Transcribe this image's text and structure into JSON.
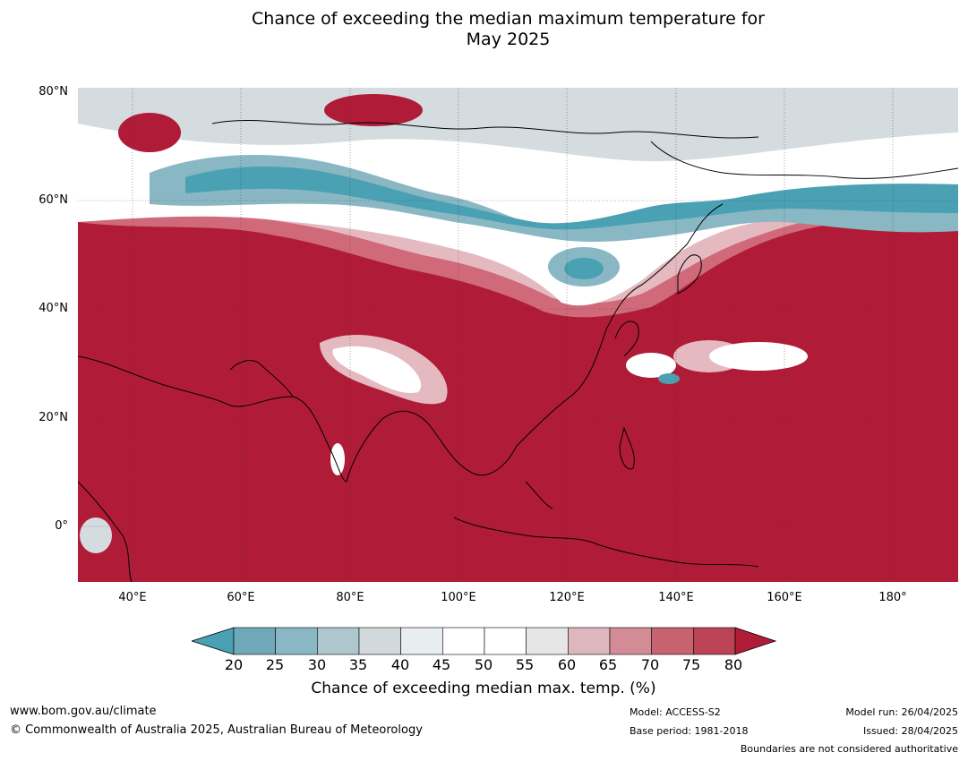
{
  "title": {
    "line1": "Chance of exceeding the median maximum temperature for",
    "line2": "May 2025"
  },
  "map": {
    "lat_labels": [
      "80°N",
      "60°N",
      "40°N",
      "20°N",
      "0°"
    ],
    "lon_labels": [
      "40°E",
      "60°E",
      "80°E",
      "100°E",
      "120°E",
      "140°E",
      "160°E",
      "180°"
    ],
    "colors": {
      "ocean_hot": "#b01c38",
      "warm": "#d06a7a",
      "light_warm": "#e5b9c0",
      "neutral": "#ffffff",
      "light_cool": "#d4dcdf",
      "cool": "#8ab7c4",
      "cold": "#4aa1b3"
    }
  },
  "colorbar": {
    "tick_labels": [
      "20",
      "25",
      "30",
      "35",
      "40",
      "45",
      "50",
      "55",
      "60",
      "65",
      "70",
      "75",
      "80"
    ],
    "bin_colors": [
      "#6fa8b8",
      "#8ab7c4",
      "#aec6ce",
      "#d1d9dc",
      "#e8eef0",
      "#ffffff",
      "#ffffff",
      "#e6e6e6",
      "#ddb7bd",
      "#d38b95",
      "#c6636f",
      "#bb4355"
    ],
    "low_color": "#4aa1b3",
    "high_color": "#b01c38",
    "label": "Chance of exceeding median max. temp. (%)"
  },
  "footer": {
    "website": "www.bom.gov.au/climate",
    "copyright": "© Commonwealth of Australia 2025, Australian Bureau of Meteorology",
    "model": "Model: ACCESS-S2",
    "base_period": "Base period: 1981-2018",
    "model_run": "Model run: 26/04/2025",
    "issued": "Issued: 28/04/2025",
    "disclaimer": "Boundaries are not considered authoritative"
  }
}
